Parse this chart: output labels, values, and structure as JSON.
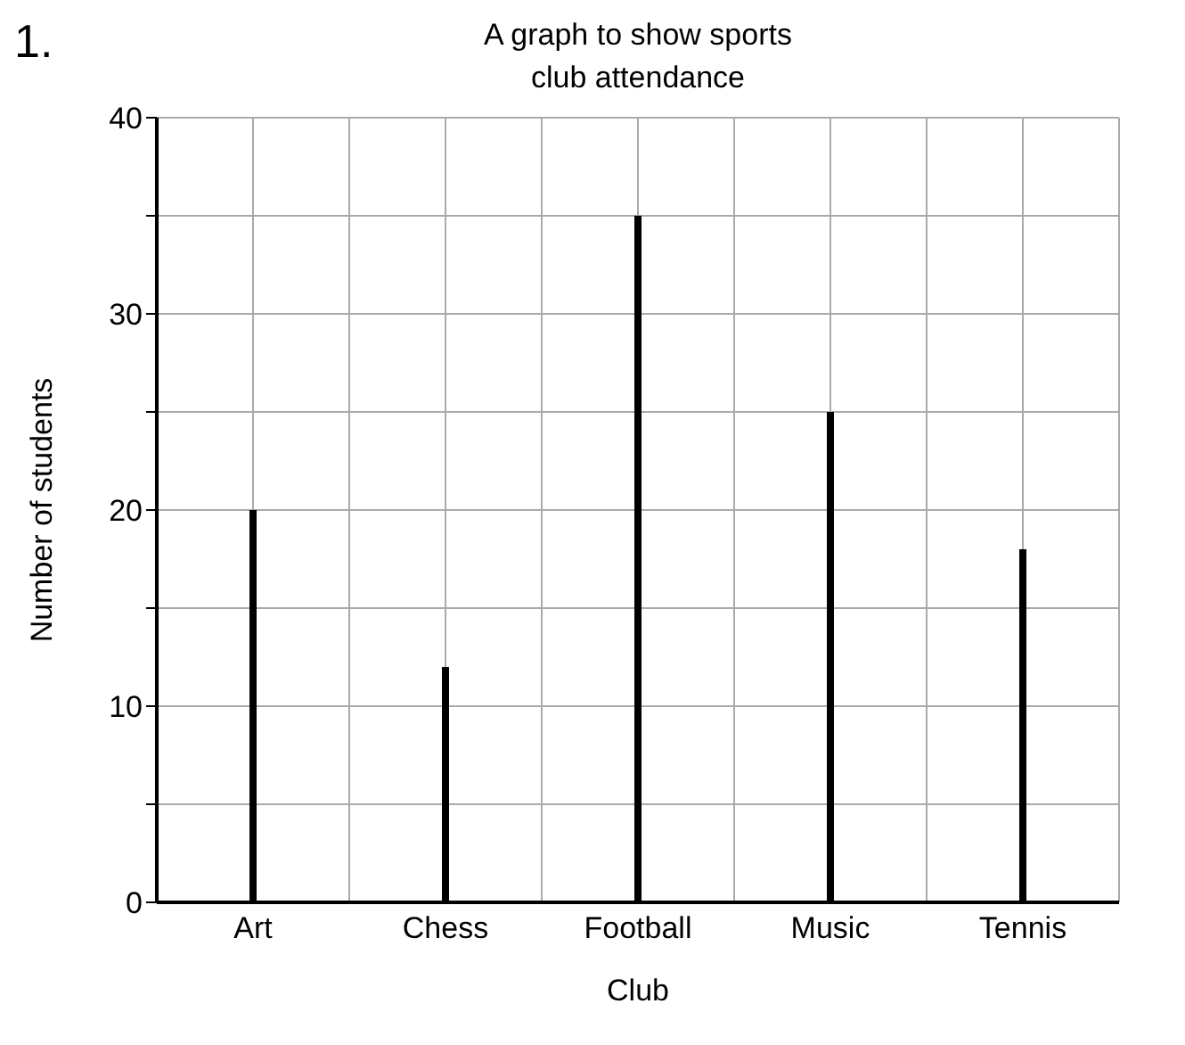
{
  "chart_data": {
    "type": "bar",
    "title": "A graph to show sports\nclub attendance",
    "xlabel": "Club",
    "ylabel": "Number of  students",
    "annotations": [
      "1."
    ],
    "categories": [
      "Art",
      "Chess",
      "Football",
      "Music",
      "Tennis"
    ],
    "values": [
      20,
      12,
      35,
      25,
      18
    ],
    "color": "#000000",
    "ylim": [
      0,
      40
    ],
    "yticks": [
      0,
      {
        "value": 5,
        "label": null
      },
      10,
      {
        "value": 15,
        "label": null
      },
      20,
      {
        "value": 25,
        "label": null
      },
      30,
      {
        "value": 35,
        "label": null
      },
      40
    ],
    "grid": true
  }
}
